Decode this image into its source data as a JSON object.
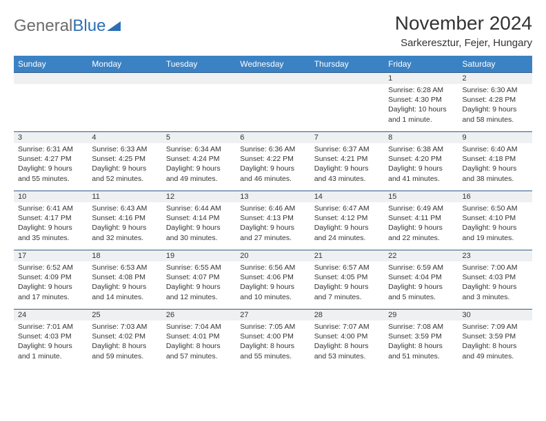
{
  "logo": {
    "text_gray": "General",
    "text_blue": "Blue"
  },
  "title": "November 2024",
  "location": "Sarkeresztur, Fejer, Hungary",
  "colors": {
    "header_bg": "#3b82c4",
    "header_text": "#ffffff",
    "daynum_bg": "#eef0f2",
    "row_border": "#2f5a8a",
    "logo_gray": "#6b6b6b",
    "logo_blue": "#2b6fb5"
  },
  "weekdays": [
    "Sunday",
    "Monday",
    "Tuesday",
    "Wednesday",
    "Thursday",
    "Friday",
    "Saturday"
  ],
  "weeks": [
    [
      {
        "num": "",
        "sunrise": "",
        "sunset": "",
        "daylight": ""
      },
      {
        "num": "",
        "sunrise": "",
        "sunset": "",
        "daylight": ""
      },
      {
        "num": "",
        "sunrise": "",
        "sunset": "",
        "daylight": ""
      },
      {
        "num": "",
        "sunrise": "",
        "sunset": "",
        "daylight": ""
      },
      {
        "num": "",
        "sunrise": "",
        "sunset": "",
        "daylight": ""
      },
      {
        "num": "1",
        "sunrise": "Sunrise: 6:28 AM",
        "sunset": "Sunset: 4:30 PM",
        "daylight": "Daylight: 10 hours and 1 minute."
      },
      {
        "num": "2",
        "sunrise": "Sunrise: 6:30 AM",
        "sunset": "Sunset: 4:28 PM",
        "daylight": "Daylight: 9 hours and 58 minutes."
      }
    ],
    [
      {
        "num": "3",
        "sunrise": "Sunrise: 6:31 AM",
        "sunset": "Sunset: 4:27 PM",
        "daylight": "Daylight: 9 hours and 55 minutes."
      },
      {
        "num": "4",
        "sunrise": "Sunrise: 6:33 AM",
        "sunset": "Sunset: 4:25 PM",
        "daylight": "Daylight: 9 hours and 52 minutes."
      },
      {
        "num": "5",
        "sunrise": "Sunrise: 6:34 AM",
        "sunset": "Sunset: 4:24 PM",
        "daylight": "Daylight: 9 hours and 49 minutes."
      },
      {
        "num": "6",
        "sunrise": "Sunrise: 6:36 AM",
        "sunset": "Sunset: 4:22 PM",
        "daylight": "Daylight: 9 hours and 46 minutes."
      },
      {
        "num": "7",
        "sunrise": "Sunrise: 6:37 AM",
        "sunset": "Sunset: 4:21 PM",
        "daylight": "Daylight: 9 hours and 43 minutes."
      },
      {
        "num": "8",
        "sunrise": "Sunrise: 6:38 AM",
        "sunset": "Sunset: 4:20 PM",
        "daylight": "Daylight: 9 hours and 41 minutes."
      },
      {
        "num": "9",
        "sunrise": "Sunrise: 6:40 AM",
        "sunset": "Sunset: 4:18 PM",
        "daylight": "Daylight: 9 hours and 38 minutes."
      }
    ],
    [
      {
        "num": "10",
        "sunrise": "Sunrise: 6:41 AM",
        "sunset": "Sunset: 4:17 PM",
        "daylight": "Daylight: 9 hours and 35 minutes."
      },
      {
        "num": "11",
        "sunrise": "Sunrise: 6:43 AM",
        "sunset": "Sunset: 4:16 PM",
        "daylight": "Daylight: 9 hours and 32 minutes."
      },
      {
        "num": "12",
        "sunrise": "Sunrise: 6:44 AM",
        "sunset": "Sunset: 4:14 PM",
        "daylight": "Daylight: 9 hours and 30 minutes."
      },
      {
        "num": "13",
        "sunrise": "Sunrise: 6:46 AM",
        "sunset": "Sunset: 4:13 PM",
        "daylight": "Daylight: 9 hours and 27 minutes."
      },
      {
        "num": "14",
        "sunrise": "Sunrise: 6:47 AM",
        "sunset": "Sunset: 4:12 PM",
        "daylight": "Daylight: 9 hours and 24 minutes."
      },
      {
        "num": "15",
        "sunrise": "Sunrise: 6:49 AM",
        "sunset": "Sunset: 4:11 PM",
        "daylight": "Daylight: 9 hours and 22 minutes."
      },
      {
        "num": "16",
        "sunrise": "Sunrise: 6:50 AM",
        "sunset": "Sunset: 4:10 PM",
        "daylight": "Daylight: 9 hours and 19 minutes."
      }
    ],
    [
      {
        "num": "17",
        "sunrise": "Sunrise: 6:52 AM",
        "sunset": "Sunset: 4:09 PM",
        "daylight": "Daylight: 9 hours and 17 minutes."
      },
      {
        "num": "18",
        "sunrise": "Sunrise: 6:53 AM",
        "sunset": "Sunset: 4:08 PM",
        "daylight": "Daylight: 9 hours and 14 minutes."
      },
      {
        "num": "19",
        "sunrise": "Sunrise: 6:55 AM",
        "sunset": "Sunset: 4:07 PM",
        "daylight": "Daylight: 9 hours and 12 minutes."
      },
      {
        "num": "20",
        "sunrise": "Sunrise: 6:56 AM",
        "sunset": "Sunset: 4:06 PM",
        "daylight": "Daylight: 9 hours and 10 minutes."
      },
      {
        "num": "21",
        "sunrise": "Sunrise: 6:57 AM",
        "sunset": "Sunset: 4:05 PM",
        "daylight": "Daylight: 9 hours and 7 minutes."
      },
      {
        "num": "22",
        "sunrise": "Sunrise: 6:59 AM",
        "sunset": "Sunset: 4:04 PM",
        "daylight": "Daylight: 9 hours and 5 minutes."
      },
      {
        "num": "23",
        "sunrise": "Sunrise: 7:00 AM",
        "sunset": "Sunset: 4:03 PM",
        "daylight": "Daylight: 9 hours and 3 minutes."
      }
    ],
    [
      {
        "num": "24",
        "sunrise": "Sunrise: 7:01 AM",
        "sunset": "Sunset: 4:03 PM",
        "daylight": "Daylight: 9 hours and 1 minute."
      },
      {
        "num": "25",
        "sunrise": "Sunrise: 7:03 AM",
        "sunset": "Sunset: 4:02 PM",
        "daylight": "Daylight: 8 hours and 59 minutes."
      },
      {
        "num": "26",
        "sunrise": "Sunrise: 7:04 AM",
        "sunset": "Sunset: 4:01 PM",
        "daylight": "Daylight: 8 hours and 57 minutes."
      },
      {
        "num": "27",
        "sunrise": "Sunrise: 7:05 AM",
        "sunset": "Sunset: 4:00 PM",
        "daylight": "Daylight: 8 hours and 55 minutes."
      },
      {
        "num": "28",
        "sunrise": "Sunrise: 7:07 AM",
        "sunset": "Sunset: 4:00 PM",
        "daylight": "Daylight: 8 hours and 53 minutes."
      },
      {
        "num": "29",
        "sunrise": "Sunrise: 7:08 AM",
        "sunset": "Sunset: 3:59 PM",
        "daylight": "Daylight: 8 hours and 51 minutes."
      },
      {
        "num": "30",
        "sunrise": "Sunrise: 7:09 AM",
        "sunset": "Sunset: 3:59 PM",
        "daylight": "Daylight: 8 hours and 49 minutes."
      }
    ]
  ]
}
